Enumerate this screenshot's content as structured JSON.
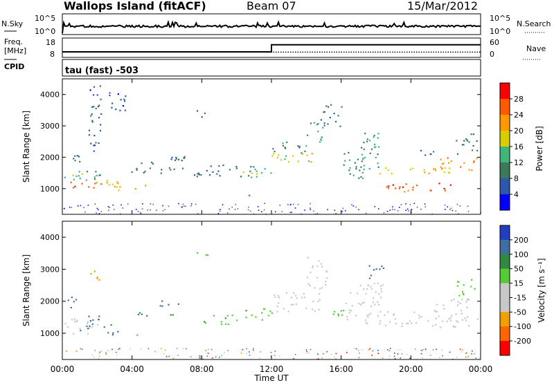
{
  "header": {
    "station": "Wallops Island (fitACF)",
    "beam": "Beam 07",
    "date": "15/Mar/2012"
  },
  "summary_panels": {
    "noise": {
      "left_label": "N.Sky",
      "right_label": "N.Search",
      "left_ticks": [
        "10^5",
        "10^0"
      ],
      "right_ticks": [
        "10^5",
        "10^0"
      ]
    },
    "frequency": {
      "left_label_1": "Freq.",
      "left_label_2": "[MHz]",
      "left_ticks": [
        "18",
        "8"
      ],
      "right_ticks": [
        "60",
        "0"
      ],
      "right_label": "Nave",
      "freq_mhz": [
        {
          "t": 0,
          "v": 10.5
        },
        {
          "t": 12,
          "v": 10.5
        },
        {
          "t": 12,
          "v": 14.8
        },
        {
          "t": 24,
          "v": 14.8
        }
      ],
      "nave": [
        {
          "t": 0,
          "v": 14
        },
        {
          "t": 24,
          "v": 14
        }
      ]
    },
    "cpid": {
      "label": "CPID",
      "text": "tau (fast) -503"
    }
  },
  "chart_data": [
    {
      "type": "heatmap",
      "name": "power",
      "ylabel": "Slant Range [km]",
      "xlabel": "Time UT",
      "x_ticks": [
        "00:00",
        "04:00",
        "08:00",
        "12:00",
        "16:00",
        "20:00",
        "00:00"
      ],
      "y_ticks": [
        "1000",
        "2000",
        "3000",
        "4000"
      ],
      "xlim_hours": [
        0,
        24
      ],
      "ylim_km": [
        180,
        4500
      ],
      "colorbar": {
        "label": "Power [dB]",
        "ticks": [
          "4",
          "8",
          "12",
          "16",
          "20",
          "24",
          "28"
        ],
        "colors": [
          "#0000ff",
          "#2d57ab",
          "#3a7a5a",
          "#3fb57a",
          "#d9cc00",
          "#ff9900",
          "#ff5a00",
          "#ff0000"
        ]
      },
      "regions": [
        {
          "t0": 0.1,
          "t1": 2.2,
          "r0": 1000,
          "r1": 1250,
          "v": 26
        },
        {
          "t0": 0.1,
          "t1": 2.2,
          "r0": 1250,
          "r1": 1700,
          "v": 14
        },
        {
          "t0": 0.1,
          "t1": 1.0,
          "r0": 1800,
          "r1": 2200,
          "v": 9
        },
        {
          "t0": 1.5,
          "t1": 2.3,
          "r0": 2200,
          "r1": 4300,
          "v": 6
        },
        {
          "t0": 2.2,
          "t1": 3.5,
          "r0": 950,
          "r1": 1400,
          "v": 20
        },
        {
          "t0": 2.3,
          "t1": 3.6,
          "r0": 3500,
          "r1": 4100,
          "v": 5
        },
        {
          "t0": 4.0,
          "t1": 4.8,
          "r0": 1000,
          "r1": 1150,
          "v": 22
        },
        {
          "t0": 3.8,
          "t1": 7.5,
          "r0": 1500,
          "r1": 1700,
          "v": 10
        },
        {
          "t0": 4.5,
          "t1": 7.0,
          "r0": 1800,
          "r1": 2100,
          "v": 7
        },
        {
          "t0": 7.6,
          "t1": 8.4,
          "r0": 3300,
          "r1": 3550,
          "v": 6
        },
        {
          "t0": 7.5,
          "t1": 11.0,
          "r0": 1400,
          "r1": 1800,
          "v": 8
        },
        {
          "t0": 10.3,
          "t1": 10.8,
          "r0": 750,
          "r1": 900,
          "v": 6
        },
        {
          "t0": 10.3,
          "t1": 12.0,
          "r0": 1350,
          "r1": 1700,
          "v": 15
        },
        {
          "t0": 12.0,
          "t1": 14.5,
          "r0": 1800,
          "r1": 2150,
          "v": 18
        },
        {
          "t0": 12.0,
          "t1": 14.0,
          "r0": 2150,
          "r1": 2550,
          "v": 11
        },
        {
          "t0": 14.0,
          "t1": 15.0,
          "r0": 2500,
          "r1": 3200,
          "v": 12
        },
        {
          "t0": 14.8,
          "t1": 16.0,
          "r0": 3000,
          "r1": 3700,
          "v": 7
        },
        {
          "t0": 16.0,
          "t1": 17.3,
          "r0": 1300,
          "r1": 2200,
          "v": 11
        },
        {
          "t0": 17.0,
          "t1": 18.2,
          "r0": 1600,
          "r1": 3000,
          "v": 12
        },
        {
          "t0": 18.2,
          "t1": 23.6,
          "r0": 1500,
          "r1": 1700,
          "v": 20
        },
        {
          "t0": 18.5,
          "t1": 22.5,
          "r0": 900,
          "r1": 1200,
          "v": 26
        },
        {
          "t0": 20.5,
          "t1": 21.5,
          "r0": 2000,
          "r1": 2300,
          "v": 8
        },
        {
          "t0": 21.5,
          "t1": 23.8,
          "r0": 1600,
          "r1": 2000,
          "v": 23
        },
        {
          "t0": 22.5,
          "t1": 23.8,
          "r0": 2100,
          "r1": 2800,
          "v": 9
        }
      ]
    },
    {
      "type": "heatmap",
      "name": "velocity",
      "ylabel": "Slant Range [km]",
      "xlabel": "Time UT",
      "x_ticks": [
        "00:00",
        "04:00",
        "08:00",
        "12:00",
        "16:00",
        "20:00",
        "00:00"
      ],
      "y_ticks": [
        "1000",
        "2000",
        "3000",
        "4000"
      ],
      "xlim_hours": [
        0,
        24
      ],
      "ylim_km": [
        180,
        4500
      ],
      "colorbar": {
        "label": "Velocity [m s⁻¹]",
        "ticks": [
          "200",
          "100",
          "50",
          "15",
          "-15",
          "-50",
          "-100",
          "-200"
        ],
        "colors": [
          "#1f3fbf",
          "#3f6fa0",
          "#2f8a3f",
          "#55cc33",
          "#c8c8c8",
          "#c8c8c8",
          "#f0a000",
          "#ff6600",
          "#ff0000"
        ]
      },
      "regions": [
        {
          "t0": 0.1,
          "t1": 2.0,
          "r0": 1000,
          "r1": 1500,
          "v": 0
        },
        {
          "t0": 0.1,
          "t1": 0.9,
          "r0": 1800,
          "r1": 2150,
          "v": 180
        },
        {
          "t0": 1.0,
          "t1": 2.3,
          "r0": 1100,
          "r1": 1600,
          "v": 150
        },
        {
          "t0": 1.6,
          "t1": 2.2,
          "r0": 2500,
          "r1": 3000,
          "v": -70
        },
        {
          "t0": 2.2,
          "t1": 3.2,
          "r0": 950,
          "r1": 1300,
          "v": 180
        },
        {
          "t0": 4.0,
          "t1": 4.6,
          "r0": 950,
          "r1": 1100,
          "v": 50
        },
        {
          "t0": 4.0,
          "t1": 6.5,
          "r0": 1550,
          "r1": 1700,
          "v": 70
        },
        {
          "t0": 5.5,
          "t1": 7.0,
          "r0": 1850,
          "r1": 2050,
          "v": 120
        },
        {
          "t0": 7.6,
          "t1": 8.4,
          "r0": 3400,
          "r1": 3600,
          "v": 40
        },
        {
          "t0": 7.8,
          "t1": 10.0,
          "r0": 1300,
          "r1": 1600,
          "v": 40
        },
        {
          "t0": 10.3,
          "t1": 12.0,
          "r0": 1400,
          "r1": 1800,
          "v": 40
        },
        {
          "t0": 12.0,
          "t1": 14.8,
          "r0": 1700,
          "r1": 2300,
          "v": 0
        },
        {
          "t0": 14.0,
          "t1": 15.2,
          "r0": 2400,
          "r1": 3400,
          "v": 0
        },
        {
          "t0": 15.5,
          "t1": 16.5,
          "r0": 1500,
          "r1": 1900,
          "v": 40
        },
        {
          "t0": 16.2,
          "t1": 18.5,
          "r0": 1300,
          "r1": 2600,
          "v": 0
        },
        {
          "t0": 17.5,
          "t1": 18.5,
          "r0": 2700,
          "r1": 3200,
          "v": 150
        },
        {
          "t0": 18.5,
          "t1": 23.8,
          "r0": 1200,
          "r1": 1700,
          "v": 0
        },
        {
          "t0": 21.3,
          "t1": 23.8,
          "r0": 1700,
          "r1": 2100,
          "v": 0
        },
        {
          "t0": 22.5,
          "t1": 23.8,
          "r0": 2200,
          "r1": 2700,
          "v": 30
        }
      ]
    }
  ]
}
